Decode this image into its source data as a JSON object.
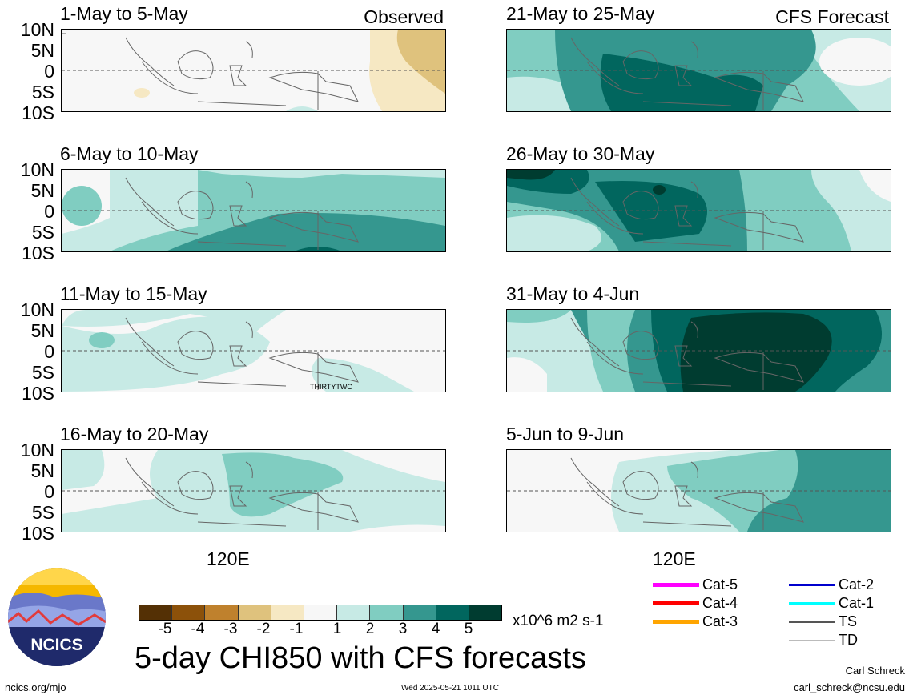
{
  "header": {
    "observed_label": "Observed",
    "forecast_label": "CFS Forecast"
  },
  "panels": [
    {
      "title": "1-May to 5-May",
      "column": "observed"
    },
    {
      "title": "6-May to 10-May",
      "column": "observed"
    },
    {
      "title": "11-May to 15-May",
      "column": "observed",
      "annotation": "THIRTYTWO"
    },
    {
      "title": "16-May to 20-May",
      "column": "observed"
    },
    {
      "title": "21-May to 25-May",
      "column": "forecast"
    },
    {
      "title": "26-May to 30-May",
      "column": "forecast"
    },
    {
      "title": "31-May to 4-Jun",
      "column": "forecast"
    },
    {
      "title": "5-Jun to 9-Jun",
      "column": "forecast"
    }
  ],
  "axes": {
    "lat_labels": [
      "10N",
      "5N",
      "0",
      "5S",
      "10S"
    ],
    "lon_label": "120E"
  },
  "colorbar": {
    "colors": [
      "#543005",
      "#8c510a",
      "#bf812d",
      "#dfc27d",
      "#f6e8c3",
      "#f7f7f7",
      "#c7eae5",
      "#80cdc1",
      "#35978f",
      "#01665e",
      "#003c30"
    ],
    "ticks": [
      "-5",
      "-4",
      "-3",
      "-2",
      "-1",
      "1",
      "2",
      "3",
      "4",
      "5"
    ],
    "units": "x10^6 m2 s-1"
  },
  "legend": {
    "items": [
      {
        "label": "Cat-5",
        "color": "#ff00ff"
      },
      {
        "label": "Cat-4",
        "color": "#ff0000"
      },
      {
        "label": "Cat-3",
        "color": "#ffa500"
      },
      {
        "label": "Cat-2",
        "color": "#0000cd"
      },
      {
        "label": "Cat-1",
        "color": "#00ffff"
      },
      {
        "label": "TS",
        "color": "#555555"
      },
      {
        "label": "TD",
        "color": "#bbbbbb"
      }
    ]
  },
  "footer": {
    "title": "5-day CHI850 with CFS forecasts",
    "logo_text": "NCICS",
    "url": "ncics.org/mjo",
    "timestamp": "Wed 2025-05-21 1011 UTC",
    "author": "Carl Schreck",
    "email": "carl_schreck@ncsu.edu"
  }
}
